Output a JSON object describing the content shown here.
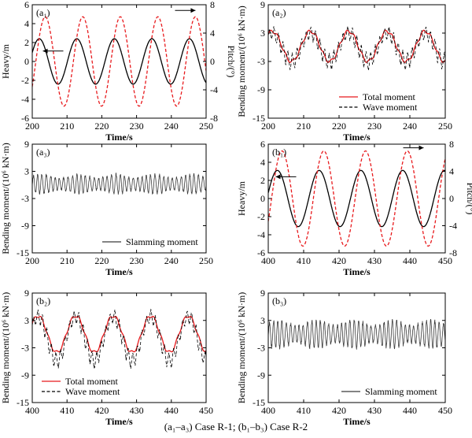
{
  "caption": "(a₁–a₃) Case R-1; (b₁–b₃) Case R-2",
  "colors": {
    "red": "#e8191c",
    "black": "#000000",
    "slam": "#3a3a3a"
  },
  "chart_data": [
    {
      "id": "a1",
      "type": "line",
      "panel_label": "(a₁)",
      "xlabel": "Time/s",
      "ylabel": "Heavy/m",
      "ylabel_right": "Pitch/(°)",
      "xlim": [
        200,
        250
      ],
      "xticks": [
        200,
        210,
        220,
        230,
        240,
        250
      ],
      "ylim": [
        -6,
        6
      ],
      "yticks": [
        -6,
        -4,
        -2,
        0,
        2,
        4,
        6
      ],
      "ylim_right": [
        -8,
        8
      ],
      "yticks_right": [
        -8,
        -4,
        0,
        4,
        8
      ],
      "series": [
        {
          "kind": "heave",
          "axis": "left",
          "style": "solid",
          "color": "#000000",
          "amplitude": 2.4,
          "period": 10.8,
          "phase": 0.4
        },
        {
          "kind": "pitch",
          "axis": "right",
          "style": "dashed",
          "color": "#e8191c",
          "amplitude": 6.3,
          "period": 10.8,
          "phase": -0.6
        }
      ],
      "arrows": [
        {
          "direction": "left",
          "at_x": 206,
          "at_y": 1.1
        },
        {
          "direction": "right",
          "at_x": 244,
          "at_y": 5.4
        }
      ]
    },
    {
      "id": "a2",
      "type": "line",
      "panel_label": "(a₂)",
      "xlabel": "Time/s",
      "ylabel": "Bending moment/(10⁶ kN·m)",
      "xlim": [
        200,
        250
      ],
      "xticks": [
        200,
        210,
        220,
        230,
        240,
        250
      ],
      "ylim": [
        -15,
        9
      ],
      "yticks": [
        -15,
        -9,
        -3,
        3,
        9
      ],
      "series": [
        {
          "name": "Total moment",
          "kind": "total",
          "style": "solid",
          "color": "#e8191c",
          "amplitude": 3.2,
          "period": 10.8,
          "phase": 0.9,
          "offset": 0.2
        },
        {
          "name": "Wave moment",
          "kind": "wave",
          "style": "dashed",
          "color": "#000000",
          "amplitude": 3.0,
          "period": 10.8,
          "phase": 0.9,
          "offset": 0.0
        }
      ],
      "legend_position": "bottom-right"
    },
    {
      "id": "a3",
      "type": "line",
      "panel_label": "(a₃)",
      "xlabel": "Time/s",
      "ylabel": "Bending moment/(10⁶ kN·m)",
      "xlim": [
        200,
        250
      ],
      "xticks": [
        200,
        210,
        220,
        230,
        240,
        250
      ],
      "ylim": [
        -15,
        9
      ],
      "yticks": [
        -15,
        -9,
        -3,
        3,
        9
      ],
      "series": [
        {
          "name": "Slamming moment",
          "kind": "slam",
          "style": "solid",
          "color": "#3a3a3a",
          "amplitude": 1.8,
          "period": 1.25,
          "offset": 0.2
        }
      ],
      "legend_position": "bottom-right"
    },
    {
      "id": "b1",
      "type": "line",
      "panel_label": "(b₁)",
      "xlabel": "Time/s",
      "ylabel": "Heavy/m",
      "ylabel_right": "Pitch/(°)",
      "xlim": [
        400,
        450
      ],
      "xticks": [
        400,
        410,
        420,
        430,
        440,
        450
      ],
      "ylim": [
        -6,
        6
      ],
      "yticks": [
        -6,
        -4,
        -2,
        0,
        2,
        4,
        6
      ],
      "ylim_right": [
        -8,
        8
      ],
      "yticks_right": [
        -8,
        -4,
        0,
        4,
        8
      ],
      "series": [
        {
          "kind": "heave",
          "axis": "left",
          "style": "solid",
          "color": "#000000",
          "amplitude": 3.1,
          "period": 11.8,
          "phase": 0.2
        },
        {
          "kind": "pitch",
          "axis": "right",
          "style": "dashed",
          "color": "#e8191c",
          "amplitude": 7.0,
          "period": 11.8,
          "phase": -0.5
        }
      ],
      "arrows": [
        {
          "direction": "left",
          "at_x": 405,
          "at_y": 2.4
        },
        {
          "direction": "right",
          "at_x": 441,
          "at_y": 5.6
        }
      ]
    },
    {
      "id": "b2",
      "type": "line",
      "panel_label": "(b₂)",
      "xlabel": "Time/s",
      "ylabel": "Bending moment/(10⁶ kN·m)",
      "xlim": [
        400,
        450
      ],
      "xticks": [
        400,
        410,
        420,
        430,
        440,
        450
      ],
      "ylim": [
        -15,
        9
      ],
      "yticks": [
        -15,
        -9,
        -3,
        3,
        9
      ],
      "series": [
        {
          "name": "Total moment",
          "kind": "total",
          "style": "solid",
          "color": "#e8191c",
          "amplitude": 4.0,
          "period": 10.8,
          "phase": 0.6,
          "offset": 0.0
        },
        {
          "name": "Wave moment",
          "kind": "wave",
          "style": "dashed",
          "color": "#000000",
          "amplitude": 4.8,
          "period": 10.8,
          "phase": 0.6,
          "offset": -1.0
        }
      ],
      "legend_position": "bottom-left"
    },
    {
      "id": "b3",
      "type": "line",
      "panel_label": "(b₃)",
      "xlabel": "Time/s",
      "ylabel": "Bending moment/(10⁶ kN·m)",
      "xlim": [
        400,
        450
      ],
      "xticks": [
        400,
        410,
        420,
        430,
        440,
        450
      ],
      "ylim": [
        -15,
        9
      ],
      "yticks": [
        -15,
        -9,
        -3,
        3,
        9
      ],
      "series": [
        {
          "name": "Slamming moment",
          "kind": "slam",
          "style": "solid",
          "color": "#3a3a3a",
          "amplitude": 2.6,
          "period": 1.2,
          "offset": 0.0
        }
      ],
      "legend_position": "bottom-right"
    }
  ]
}
